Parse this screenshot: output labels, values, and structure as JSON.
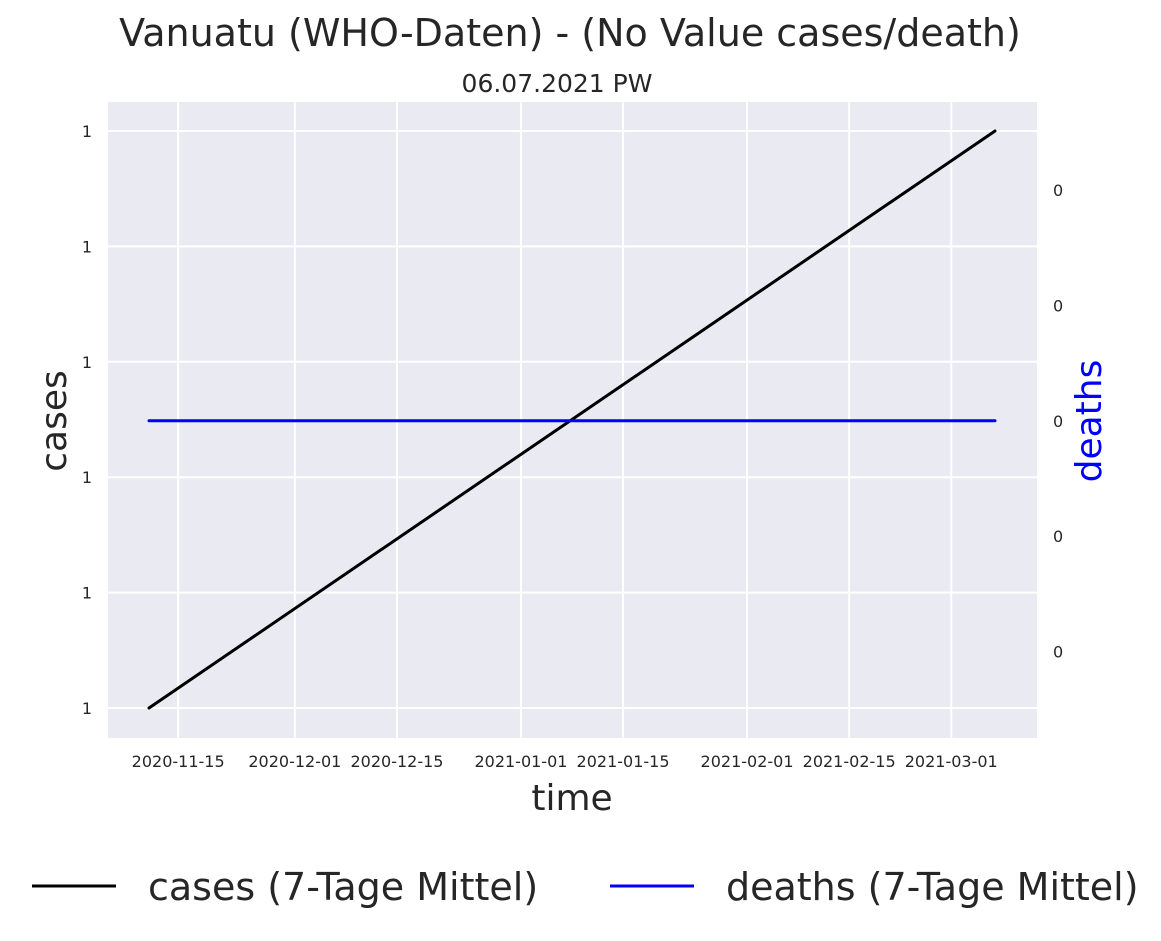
{
  "chart_data": {
    "type": "line",
    "title": "Vanuatu (WHO-Daten) - (No Value cases/death)",
    "subtitle": "06.07.2021 PW",
    "xlabel": "time",
    "ylabel": "cases",
    "y2label": "deaths",
    "x_tick_labels": [
      "2020-11-15",
      "2020-12-01",
      "2020-12-15",
      "2021-01-01",
      "2021-01-15",
      "2021-02-01",
      "2021-02-15",
      "2021-03-01"
    ],
    "y_tick_labels": [
      "1",
      "1",
      "1",
      "1",
      "1",
      "1"
    ],
    "y2_tick_labels": [
      "0",
      "0",
      "0",
      "0",
      "0"
    ],
    "x_range": [
      "2020-11-11",
      "2021-03-07"
    ],
    "grid": true,
    "legend_position": "bottom",
    "series": [
      {
        "name": "cases (7-Tage Mittel)",
        "axis": "left",
        "color": "#000000",
        "x": [
          "2020-11-11",
          "2021-03-07"
        ],
        "values": [
          1,
          1
        ]
      },
      {
        "name": "deaths (7-Tage Mittel)",
        "axis": "right",
        "color": "#0000ff",
        "x": [
          "2020-11-11",
          "2021-03-07"
        ],
        "values": [
          0,
          0
        ]
      }
    ]
  },
  "colors": {
    "plot_background": "#eaeaf2",
    "grid": "#ffffff",
    "text": "#262626",
    "deaths_axis_label": "#0000ff"
  }
}
